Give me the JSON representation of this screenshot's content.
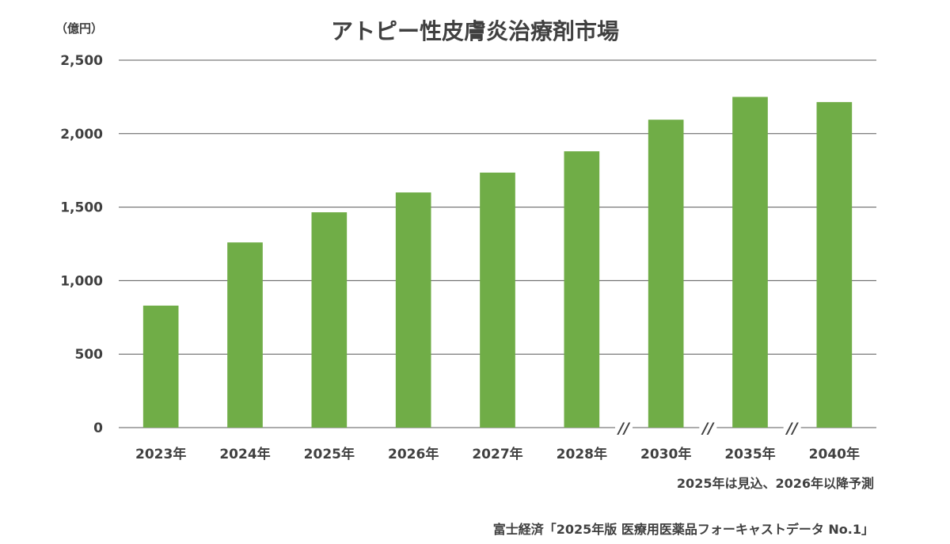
{
  "header": {
    "title": "アトピー性皮膚炎治療剤市場",
    "unit": "（億円）"
  },
  "footer": {
    "note": "2025年は見込、2026年以降予測",
    "source": "富士経済「2025年版 医療用医薬品フォーキャストデータ No.1」"
  },
  "colors": {
    "bar": "#70ad47",
    "grid": "#595959",
    "text": "#404040"
  },
  "chart_data": {
    "type": "bar",
    "title": "アトピー性皮膚炎治療剤市場",
    "ylabel": "（億円）",
    "xlabel": "",
    "ylim": [
      0,
      2500
    ],
    "yticks": [
      0,
      500,
      1000,
      1500,
      2000,
      2500
    ],
    "ytick_labels": [
      "0",
      "500",
      "1,000",
      "1,500",
      "2,000",
      "2,500"
    ],
    "categories": [
      "2023年",
      "2024年",
      "2025年",
      "2026年",
      "2027年",
      "2028年",
      "2030年",
      "2035年",
      "2040年"
    ],
    "values": [
      830,
      1260,
      1465,
      1600,
      1735,
      1880,
      2095,
      2250,
      2215
    ],
    "axis_breaks_after_index": [
      5,
      6,
      7
    ],
    "axis_break_label": "//",
    "grid": true,
    "legend": "none"
  }
}
